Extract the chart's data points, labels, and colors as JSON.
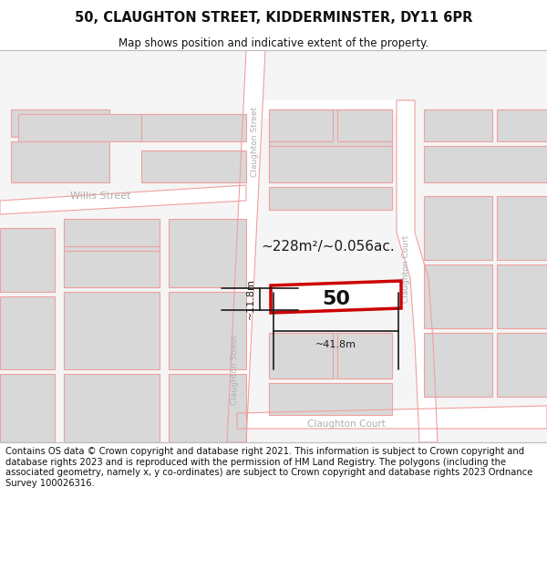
{
  "title": "50, CLAUGHTON STREET, KIDDERMINSTER, DY11 6PR",
  "subtitle": "Map shows position and indicative extent of the property.",
  "footer": "Contains OS data © Crown copyright and database right 2021. This information is subject to Crown copyright and database rights 2023 and is reproduced with the permission of HM Land Registry. The polygons (including the associated geometry, namely x, y co-ordinates) are subject to Crown copyright and database rights 2023 Ordnance Survey 100026316.",
  "map_bg": "#f5f5f5",
  "road_fill": "#ffffff",
  "building_fill": "#d8d8d8",
  "building_edge": "#f0a0a0",
  "road_edge": "#f0a0a0",
  "highlight_line": "#cc0000",
  "highlight_fill": "#ffffff",
  "dim_color": "#1a1a1a",
  "street_label_color": "#b0b0b0",
  "area_text": "~228m²/~0.056ac.",
  "width_text": "~41.8m",
  "height_text": "~11.8m",
  "plot_label": "50",
  "title_fontsize": 10.5,
  "subtitle_fontsize": 8.5,
  "footer_fontsize": 7.2
}
